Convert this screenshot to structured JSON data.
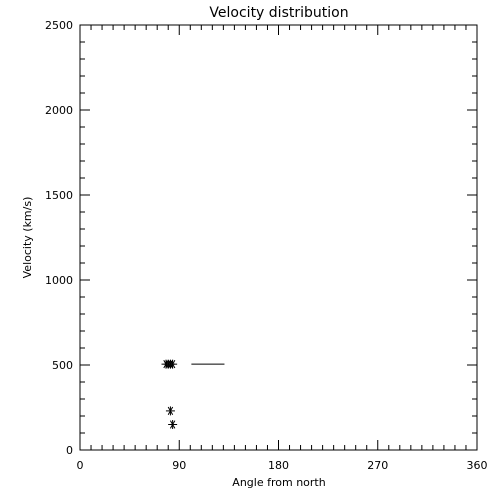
{
  "chart_data": {
    "type": "scatter",
    "title": "Velocity distribution",
    "xlabel": "Angle from north",
    "ylabel": "Velocity (km/s)",
    "xlim": [
      0,
      360
    ],
    "ylim": [
      0,
      2500
    ],
    "x_ticks": [
      0,
      90,
      180,
      270,
      360
    ],
    "y_ticks": [
      0,
      500,
      1000,
      1500,
      2000,
      2500
    ],
    "x_minor_step": 10,
    "y_minor_step": 100,
    "grid": false,
    "marker": "asterisk",
    "points": [
      {
        "x": 78,
        "y": 505
      },
      {
        "x": 80,
        "y": 505
      },
      {
        "x": 82,
        "y": 505
      },
      {
        "x": 84,
        "y": 505
      },
      {
        "x": 82,
        "y": 230
      },
      {
        "x": 84,
        "y": 150
      }
    ],
    "segments": [
      {
        "x1": 101,
        "x2": 131,
        "y": 505
      }
    ],
    "color": "#000000"
  }
}
